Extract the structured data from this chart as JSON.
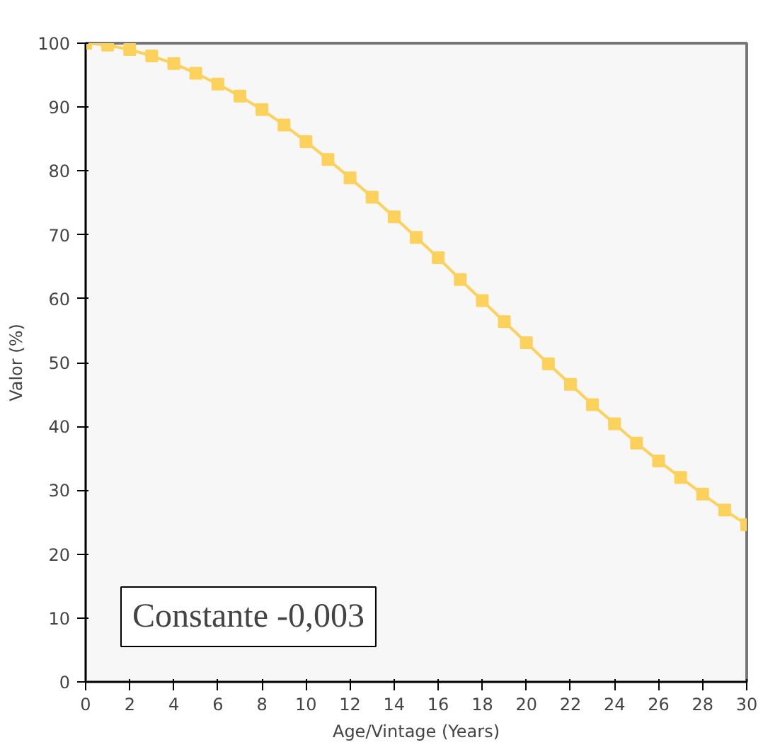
{
  "chart_data": {
    "type": "line",
    "xlabel": "Age/Vintage (Years)",
    "ylabel": "Valor (%)",
    "x": [
      0,
      1,
      2,
      3,
      4,
      5,
      6,
      7,
      8,
      9,
      10,
      11,
      12,
      13,
      14,
      15,
      16,
      17,
      18,
      19,
      20,
      21,
      22,
      23,
      24,
      25,
      26,
      27,
      28,
      29,
      30
    ],
    "series": [
      {
        "color": "#fcd15c",
        "values": [
          100,
          99.7,
          99,
          98,
          96.8,
          95.3,
          93.6,
          91.7,
          89.6,
          87.2,
          84.6,
          81.8,
          78.9,
          75.9,
          72.8,
          69.6,
          66.4,
          63,
          59.7,
          56.4,
          53.1,
          49.8,
          46.6,
          43.4,
          40.4,
          37.4,
          34.6,
          32,
          29.4,
          26.9,
          24.6
        ]
      }
    ],
    "xlim": [
      0,
      30
    ],
    "ylim": [
      0,
      100
    ],
    "xticks": [
      0,
      2,
      4,
      6,
      8,
      10,
      12,
      14,
      16,
      18,
      20,
      22,
      24,
      26,
      28,
      30
    ],
    "yticks": [
      0,
      10,
      20,
      30,
      40,
      50,
      60,
      70,
      80,
      90,
      100
    ],
    "marker": "square",
    "grid": false,
    "annotations": [
      "Constante -0,003"
    ]
  }
}
